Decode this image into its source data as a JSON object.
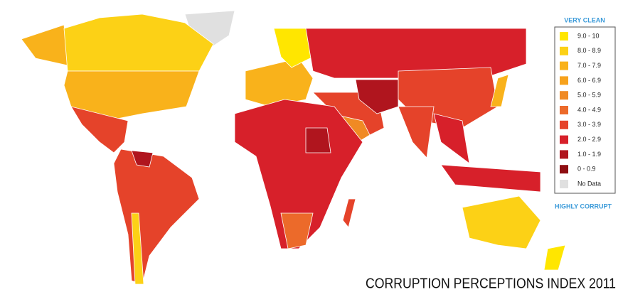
{
  "title": "CORRUPTION PERCEPTIONS INDEX 2011",
  "legend": {
    "top_label": "VERY CLEAN",
    "bottom_label": "HIGHLY CORRUPT",
    "items": [
      {
        "label": "9.0 - 10",
        "color": "#ffe600"
      },
      {
        "label": "8.0 - 8.9",
        "color": "#fcd116"
      },
      {
        "label": "7.0 - 7.9",
        "color": "#f9b21b"
      },
      {
        "label": "6.0 - 6.9",
        "color": "#f7a21c"
      },
      {
        "label": "5.0 - 5.9",
        "color": "#f08a24"
      },
      {
        "label": "4.0 - 4.9",
        "color": "#ec6a2a"
      },
      {
        "label": "3.0 - 3.9",
        "color": "#e5432a"
      },
      {
        "label": "2.0 - 2.9",
        "color": "#d7202a"
      },
      {
        "label": "1.0 - 1.9",
        "color": "#b0151e"
      },
      {
        "label": "0 - 0.9",
        "color": "#8e0e12"
      },
      {
        "label": "No Data",
        "color": "#e0e0e0"
      }
    ]
  }
}
